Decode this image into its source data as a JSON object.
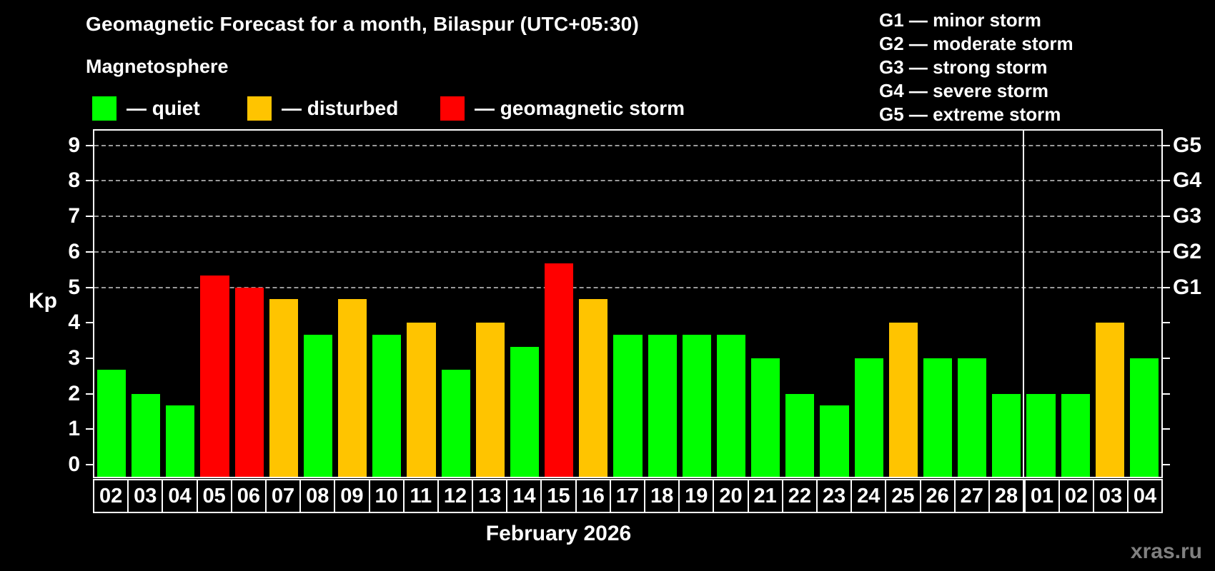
{
  "title": "Geomagnetic Forecast for a month, Bilaspur (UTC+05:30)",
  "subtitle": "Magnetosphere",
  "legend": [
    {
      "label": "— quiet",
      "level": "quiet",
      "color": "#00ff00"
    },
    {
      "label": "— disturbed",
      "level": "disturbed",
      "color": "#ffc400"
    },
    {
      "label": "— geomagnetic storm",
      "level": "storm",
      "color": "#ff0000"
    }
  ],
  "g_scale_legend": [
    "G1 — minor storm",
    "G2 — moderate storm",
    "G3 — strong storm",
    "G4 — severe storm",
    "G5 — extreme storm"
  ],
  "watermark": "xras.ru",
  "colors": {
    "quiet": "#00ff00",
    "disturbed": "#ffc400",
    "storm": "#ff0000",
    "background": "#000000",
    "text": "#ffffff",
    "grid": "#9a9a9a",
    "watermark": "#808080"
  },
  "chart_data": {
    "type": "bar",
    "title": "Geomagnetic Forecast for a month, Bilaspur (UTC+05:30)",
    "xlabel": "February 2026",
    "ylabel": "Kp",
    "ylim": [
      0,
      9
    ],
    "yticks": [
      0,
      1,
      2,
      3,
      4,
      5,
      6,
      7,
      8,
      9
    ],
    "grid": "horizontal dashed lines at Kp 5-9 (G1-G5 levels) only",
    "legend_position": "top-left",
    "right_axis_labels": [
      {
        "label": "G1",
        "kp": 5
      },
      {
        "label": "G2",
        "kp": 6
      },
      {
        "label": "G3",
        "kp": 7
      },
      {
        "label": "G4",
        "kp": 8
      },
      {
        "label": "G5",
        "kp": 9
      }
    ],
    "categories": [
      "02",
      "03",
      "04",
      "05",
      "06",
      "07",
      "08",
      "09",
      "10",
      "11",
      "12",
      "13",
      "14",
      "15",
      "16",
      "17",
      "18",
      "19",
      "20",
      "21",
      "22",
      "23",
      "24",
      "25",
      "26",
      "27",
      "28",
      "01",
      "02",
      "03",
      "04"
    ],
    "values": [
      2.67,
      2,
      1.67,
      5.33,
      5,
      4.67,
      3.67,
      4.67,
      3.67,
      4,
      2.67,
      4,
      3.33,
      5.67,
      4.67,
      3.67,
      3.67,
      3.67,
      3.67,
      3,
      2,
      1.67,
      3,
      4,
      3,
      3,
      2,
      2,
      2,
      4,
      3
    ],
    "levels": [
      "quiet",
      "quiet",
      "quiet",
      "storm",
      "storm",
      "disturbed",
      "quiet",
      "disturbed",
      "quiet",
      "disturbed",
      "quiet",
      "disturbed",
      "quiet",
      "storm",
      "disturbed",
      "quiet",
      "quiet",
      "quiet",
      "quiet",
      "quiet",
      "quiet",
      "quiet",
      "quiet",
      "disturbed",
      "quiet",
      "quiet",
      "quiet",
      "quiet",
      "quiet",
      "disturbed",
      "quiet"
    ],
    "february_days": 27,
    "march_days": 4,
    "month_separator_after_index": 26
  }
}
